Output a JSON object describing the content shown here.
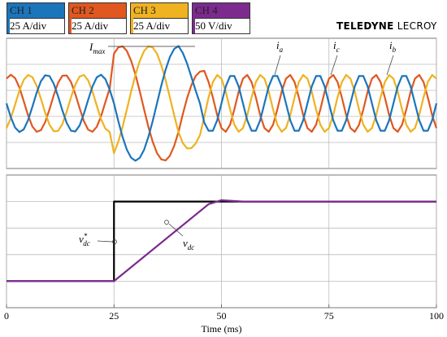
{
  "header": {
    "channels": [
      {
        "name": "CH 1",
        "scale": "25 A/div",
        "color": "#1b75bb"
      },
      {
        "name": "CH 2",
        "scale": "25 A/div",
        "color": "#e0581f"
      },
      {
        "name": "CH 3",
        "scale": "25 A/div",
        "color": "#efb221"
      },
      {
        "name": "CH 4",
        "scale": "50 V/div",
        "color": "#7d2a8f"
      }
    ],
    "brand": {
      "bold": "TELEDYNE",
      "light": "LECROY"
    }
  },
  "chart_data": [
    {
      "type": "line",
      "x": [
        0,
        1,
        2,
        3,
        4,
        5,
        6,
        7,
        8,
        9,
        10,
        11,
        12,
        13,
        14,
        15,
        16,
        17,
        18,
        19,
        20,
        21,
        22,
        23,
        24,
        25,
        26,
        27,
        28,
        29,
        30,
        31,
        32,
        33,
        34,
        35,
        36,
        37,
        38,
        39,
        40,
        41,
        42,
        43,
        44,
        45,
        46,
        47,
        48,
        49,
        50,
        51,
        52,
        53,
        54,
        55,
        56,
        57,
        58,
        59,
        60,
        61,
        62,
        63,
        64,
        65,
        66,
        67,
        68,
        69,
        70,
        71,
        72,
        73,
        74,
        75,
        76,
        77,
        78,
        79,
        80,
        81,
        82,
        83,
        84,
        85,
        86,
        87,
        88,
        89,
        90,
        91,
        92,
        93,
        94,
        95,
        96,
        97,
        98,
        99,
        100
      ],
      "series": [
        {
          "color": "#e0581f",
          "values": [
            0.95,
            1.1,
            0.97,
            0.61,
            0.09,
            -0.45,
            -0.88,
            -1.09,
            -1.03,
            -0.72,
            -0.23,
            0.32,
            0.79,
            1.06,
            1.07,
            0.82,
            0.36,
            -0.18,
            -0.68,
            -1.01,
            -1.09,
            -0.9,
            -0.49,
            0.05,
            0.57,
            1.91,
            2.15,
            2.19,
            2.01,
            1.63,
            1.1,
            0.46,
            -0.23,
            -0.9,
            -1.47,
            -1.91,
            -2.15,
            -2.19,
            -2.01,
            -1.63,
            -1.1,
            -0.42,
            0.2,
            0.7,
            1.05,
            1.22,
            1.25,
            0.82,
            0.23,
            -0.45,
            -0.95,
            -1.09,
            -0.82,
            -0.23,
            0.45,
            0.95,
            1.09,
            0.82,
            0.23,
            -0.45,
            -0.95,
            -1.09,
            -0.82,
            -0.23,
            0.45,
            0.95,
            1.09,
            0.82,
            0.23,
            -0.45,
            -0.95,
            -1.09,
            -0.82,
            -0.23,
            0.45,
            0.95,
            1.09,
            0.82,
            0.23,
            -0.45,
            -0.95,
            -1.09,
            -0.82,
            -0.23,
            0.45,
            0.95,
            1.09,
            0.82,
            0.23,
            -0.45,
            -0.95,
            -1.09,
            -0.82,
            -0.23,
            0.45,
            0.95,
            1.09,
            0.82,
            0.23,
            -0.45,
            -0.95
          ]
        },
        {
          "color": "#efb221",
          "values": [
            -0.95,
            -0.57,
            -0.05,
            0.49,
            0.9,
            1.09,
            1.01,
            0.68,
            0.18,
            -0.36,
            -0.82,
            -1.07,
            -1.06,
            -0.79,
            -0.32,
            0.23,
            0.72,
            1.03,
            1.09,
            0.88,
            0.45,
            -0.09,
            -0.61,
            -0.97,
            -1.1,
            -1.91,
            -1.47,
            -0.9,
            -0.23,
            0.46,
            1.1,
            1.63,
            2.01,
            2.19,
            2.15,
            1.91,
            1.47,
            0.9,
            0.23,
            -0.46,
            -1.1,
            -1.52,
            -1.73,
            -1.72,
            -1.54,
            -1.22,
            -0.51,
            0.23,
            0.82,
            1.09,
            0.95,
            0.45,
            -0.23,
            -0.82,
            -1.09,
            -0.95,
            -0.45,
            0.23,
            0.82,
            1.09,
            0.95,
            0.45,
            -0.23,
            -0.82,
            -1.09,
            -0.95,
            -0.45,
            0.23,
            0.82,
            1.09,
            0.95,
            0.45,
            -0.23,
            -0.82,
            -1.09,
            -0.95,
            -0.45,
            0.23,
            0.82,
            1.09,
            0.95,
            0.45,
            -0.23,
            -0.82,
            -1.09,
            -0.95,
            -0.45,
            0.23,
            0.82,
            1.09,
            0.95,
            0.45,
            -0.23,
            -0.82,
            -1.09,
            -0.95,
            -0.45,
            0.23,
            0.82,
            1.09,
            0.95
          ]
        },
        {
          "color": "#1b75bb",
          "values": [
            0,
            -0.53,
            -0.93,
            -1.1,
            -1.0,
            -0.65,
            -0.14,
            0.4,
            0.85,
            1.08,
            1.05,
            0.75,
            0.27,
            -0.27,
            -0.75,
            -1.05,
            -1.08,
            -0.85,
            -0.4,
            0.14,
            0.65,
            1.0,
            1.1,
            0.93,
            0.53,
            0,
            -0.68,
            -1.29,
            -1.78,
            -2.09,
            -2.2,
            -2.09,
            -1.78,
            -1.29,
            -0.68,
            0,
            0.68,
            1.29,
            1.78,
            2.09,
            2.2,
            1.94,
            1.53,
            1.02,
            0.49,
            0,
            -0.74,
            -1.05,
            -1.05,
            -0.65,
            0,
            0.65,
            1.05,
            1.05,
            0.65,
            0,
            -0.65,
            -1.05,
            -1.05,
            -0.65,
            0,
            0.65,
            1.05,
            1.05,
            0.65,
            0,
            -0.65,
            -1.05,
            -1.05,
            -0.65,
            0,
            0.65,
            1.05,
            1.05,
            0.65,
            0,
            -0.65,
            -1.05,
            -1.05,
            -0.65,
            0,
            0.65,
            1.05,
            1.05,
            0.65,
            0,
            -0.65,
            -1.05,
            -1.05,
            -0.65,
            0,
            0.65,
            1.05,
            1.05,
            0.65,
            0,
            -0.65,
            -1.05,
            -1.05,
            -0.65,
            0
          ]
        }
      ],
      "xlim": [
        0,
        100
      ],
      "xticks": [
        0,
        25,
        50,
        75,
        100
      ],
      "ylim": [
        -2.5,
        2.5
      ],
      "yticks": [
        -1.5,
        -0.5,
        0.5,
        1.5
      ],
      "grid": true,
      "annotations": [
        {
          "text": "I",
          "sub": "max"
        },
        {
          "text": "i",
          "sub": "a"
        },
        {
          "text": "i",
          "sub": "c"
        },
        {
          "text": "i",
          "sub": "b"
        }
      ]
    },
    {
      "type": "line",
      "x": [
        0,
        25,
        25,
        47,
        50,
        55,
        100
      ],
      "series": [
        {
          "color": "#000000",
          "values": [
            1,
            1,
            4,
            4,
            4,
            4,
            4
          ]
        },
        {
          "color": "#7d2a8f",
          "values": [
            1,
            1,
            1,
            3.9,
            4.05,
            4.0,
            4.0
          ]
        }
      ],
      "xlim": [
        0,
        100
      ],
      "xticks": [
        0,
        25,
        50,
        75,
        100
      ],
      "ylim": [
        0,
        5
      ],
      "yticks": [
        1,
        2,
        3,
        4
      ],
      "grid": true,
      "xlabel": "Time (ms)",
      "annotations": [
        {
          "text": "v",
          "sup": "*",
          "sub": "dc"
        },
        {
          "text": "v",
          "sub": "dc"
        }
      ]
    }
  ]
}
